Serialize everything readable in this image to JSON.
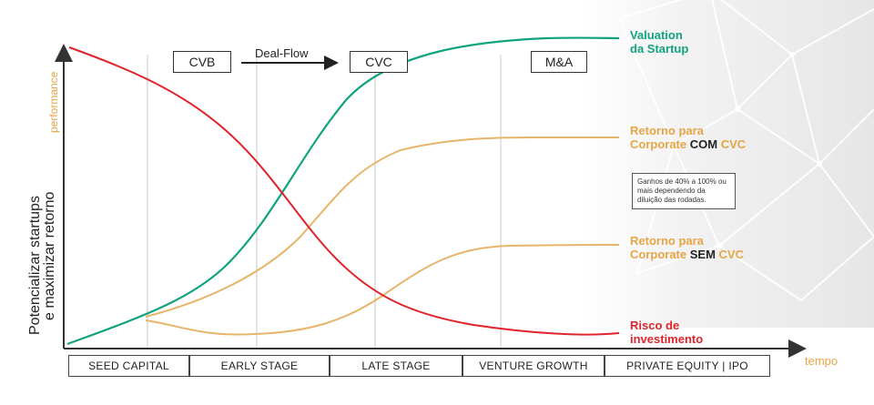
{
  "colors": {
    "valuation": "#11a37f",
    "corporate": "#e8b46a",
    "risk": "#e0242c",
    "axis": "#333333",
    "accent_label": "#e6a546"
  },
  "axis": {
    "y_label": "performance",
    "x_label": "tempo",
    "y_title_line1": "Potencializar startups",
    "y_title_line2": "e maximizar retorno"
  },
  "tags": {
    "cvb": "CVB",
    "deal_flow": "Deal-Flow",
    "cvc": "CVC",
    "ma": "M&A"
  },
  "stages": [
    "SEED CAPITAL",
    "EARLY STAGE",
    "LATE STAGE",
    "VENTURE GROWTH",
    "PRIVATE EQUITY | IPO"
  ],
  "labels": {
    "valuation_1": "Valuation",
    "valuation_2": "da Startup",
    "com_1": "Retorno para",
    "com_2a": "Corporate ",
    "com_2b": "COM",
    "com_2c": " CVC",
    "sem_1": "Retorno para",
    "sem_2a": "Corporate ",
    "sem_2b": "SEM",
    "sem_2c": " CVC",
    "risk_1": "Risco de",
    "risk_2": "investimento"
  },
  "note": "Ganhos de 40% a 100% ou mais dependendo da diluição das rodadas."
}
